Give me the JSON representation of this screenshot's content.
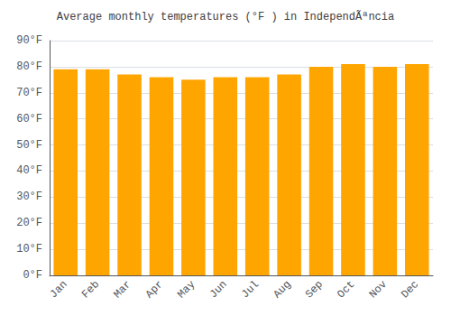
{
  "chart_data": {
    "type": "bar",
    "title": "Average monthly temperatures (°F ) in IndependÃªncia",
    "categories": [
      "Jan",
      "Feb",
      "Mar",
      "Apr",
      "May",
      "Jun",
      "Jul",
      "Aug",
      "Sep",
      "Oct",
      "Nov",
      "Dec"
    ],
    "values": [
      79,
      79,
      77,
      76,
      75,
      76,
      76,
      77,
      80,
      81,
      80,
      81
    ],
    "color": "#FFA500",
    "ylim": [
      0,
      90
    ],
    "yticks": [
      {
        "value": 0,
        "label": "0°F"
      },
      {
        "value": 10,
        "label": "10°F"
      },
      {
        "value": 20,
        "label": "20°F"
      },
      {
        "value": 30,
        "label": "30°F"
      },
      {
        "value": 40,
        "label": "40°F"
      },
      {
        "value": 50,
        "label": "50°F"
      },
      {
        "value": 60,
        "label": "60°F"
      },
      {
        "value": 70,
        "label": "70°F"
      },
      {
        "value": 80,
        "label": "80°F"
      },
      {
        "value": 90,
        "label": "90°F"
      }
    ],
    "grid": true
  }
}
